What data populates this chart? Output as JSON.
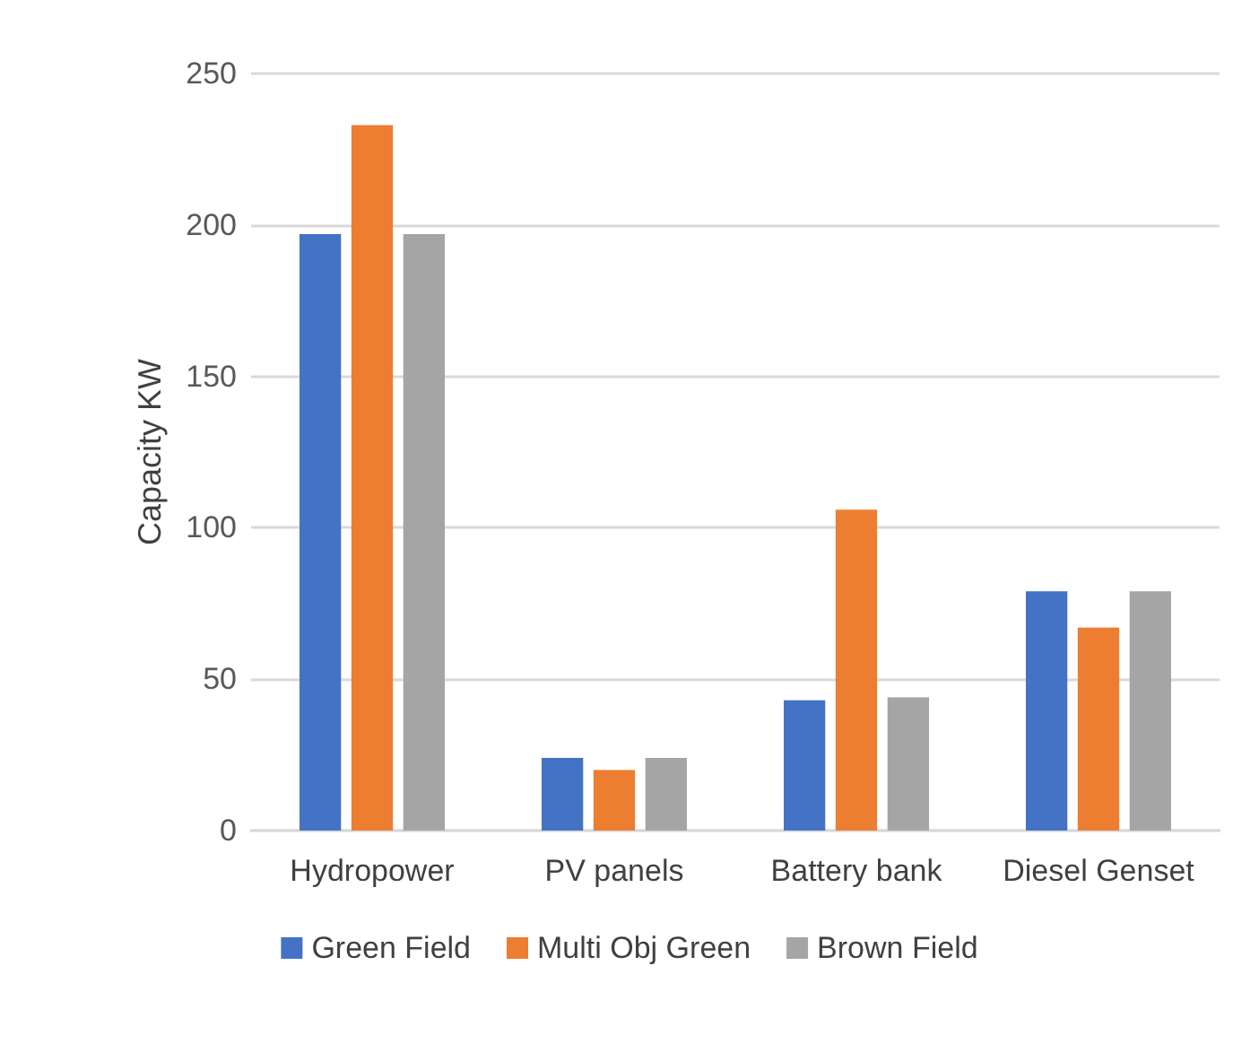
{
  "chart_data": {
    "type": "bar",
    "ylabel": "Capacity KW",
    "categories": [
      "Hydropower",
      "PV panels",
      "Battery bank",
      "Diesel Genset"
    ],
    "series": [
      {
        "name": "Green Field",
        "color": "#4472c4",
        "values": [
          197,
          24,
          43,
          79
        ]
      },
      {
        "name": "Multi Obj Green",
        "color": "#ed7d31",
        "values": [
          233,
          20,
          106,
          67
        ]
      },
      {
        "name": "Brown Field",
        "color": "#a5a5a5",
        "values": [
          197,
          24,
          44,
          79
        ]
      }
    ],
    "ylim": [
      0,
      250
    ],
    "yticks": [
      0,
      50,
      100,
      150,
      200,
      250
    ],
    "grid": "y",
    "legend": "bottom"
  }
}
